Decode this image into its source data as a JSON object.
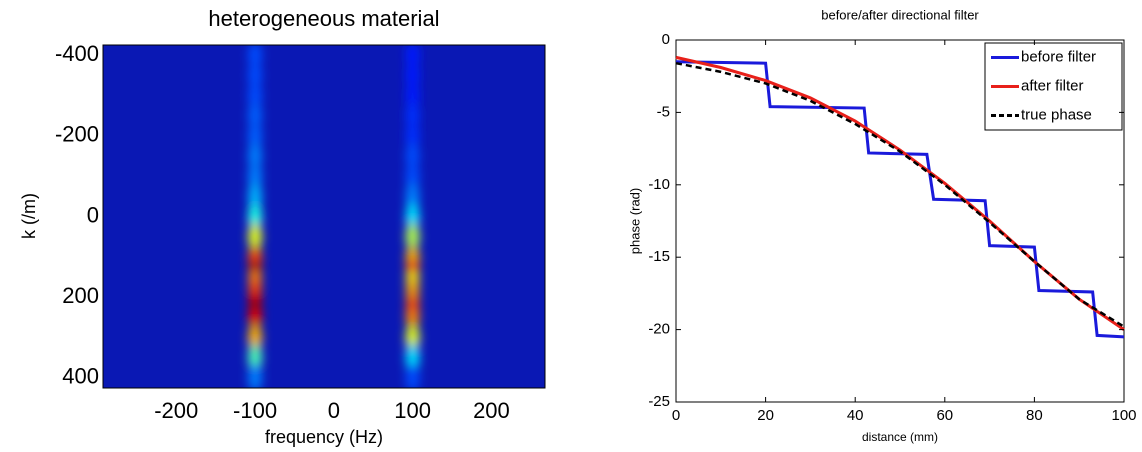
{
  "chart_data": [
    {
      "type": "heatmap",
      "title": "heterogeneous material",
      "xlabel": "frequency (Hz)",
      "ylabel": "k (/m)",
      "x": [
        -100,
        100
      ],
      "y": [
        -400,
        -350,
        -300,
        -250,
        -200,
        -150,
        -100,
        -50,
        0,
        50,
        100,
        125,
        150,
        175,
        200,
        225,
        250,
        300,
        350,
        400
      ],
      "z": [
        [
          0.2,
          0.2,
          0.2,
          0.22,
          0.22,
          0.25,
          0.25,
          0.3,
          0.4,
          0.6,
          0.8,
          0.95,
          0.75,
          0.8,
          0.9,
          1.0,
          0.9,
          0.7,
          0.45,
          0.25
        ],
        [
          0.15,
          0.15,
          0.15,
          0.17,
          0.17,
          0.2,
          0.2,
          0.25,
          0.35,
          0.55,
          0.7,
          0.8,
          0.65,
          0.7,
          0.75,
          0.85,
          0.75,
          0.6,
          0.35,
          0.2
        ]
      ],
      "zlim": [
        0,
        1
      ],
      "colormap": "jet",
      "xlim": [
        -293,
        268
      ],
      "ylim": [
        -425,
        425
      ],
      "y_inverted": true,
      "xticks": [
        -200,
        -100,
        0,
        100,
        200
      ],
      "yticks": [
        -400,
        -200,
        0,
        200,
        400
      ]
    },
    {
      "type": "line",
      "title": "before/after directional filter",
      "xlabel": "distance (mm)",
      "ylabel": "phase (rad)",
      "xlim": [
        0,
        100
      ],
      "ylim": [
        -25,
        0
      ],
      "xticks": [
        0,
        20,
        40,
        60,
        80,
        100
      ],
      "yticks": [
        -25,
        -20,
        -15,
        -10,
        -5,
        0
      ],
      "legend": "upper right",
      "series": [
        {
          "name": "before filter",
          "color": "#1a1adb",
          "dash": false,
          "x": [
            0,
            20,
            21,
            42,
            43,
            56,
            57.5,
            69,
            70,
            80,
            81,
            93,
            94,
            100
          ],
          "values": [
            -1.5,
            -1.6,
            -4.6,
            -4.7,
            -7.8,
            -7.9,
            -11,
            -11.1,
            -14.2,
            -14.3,
            -17.3,
            -17.4,
            -20.4,
            -20.5
          ]
        },
        {
          "name": "after filter",
          "color": "#e8201a",
          "dash": false,
          "x": [
            0,
            10,
            20,
            30,
            40,
            50,
            60,
            70,
            80,
            90,
            100
          ],
          "values": [
            -1.2,
            -1.9,
            -2.8,
            -4.0,
            -5.6,
            -7.6,
            -9.9,
            -12.5,
            -15.3,
            -17.9,
            -20.0
          ]
        },
        {
          "name": "true phase",
          "color": "#000000",
          "dash": true,
          "x": [
            0,
            10,
            20,
            30,
            40,
            50,
            60,
            70,
            80,
            90,
            100
          ],
          "values": [
            -1.6,
            -2.2,
            -3.0,
            -4.2,
            -5.8,
            -7.7,
            -10.0,
            -12.6,
            -15.3,
            -17.9,
            -19.8
          ]
        }
      ]
    }
  ]
}
